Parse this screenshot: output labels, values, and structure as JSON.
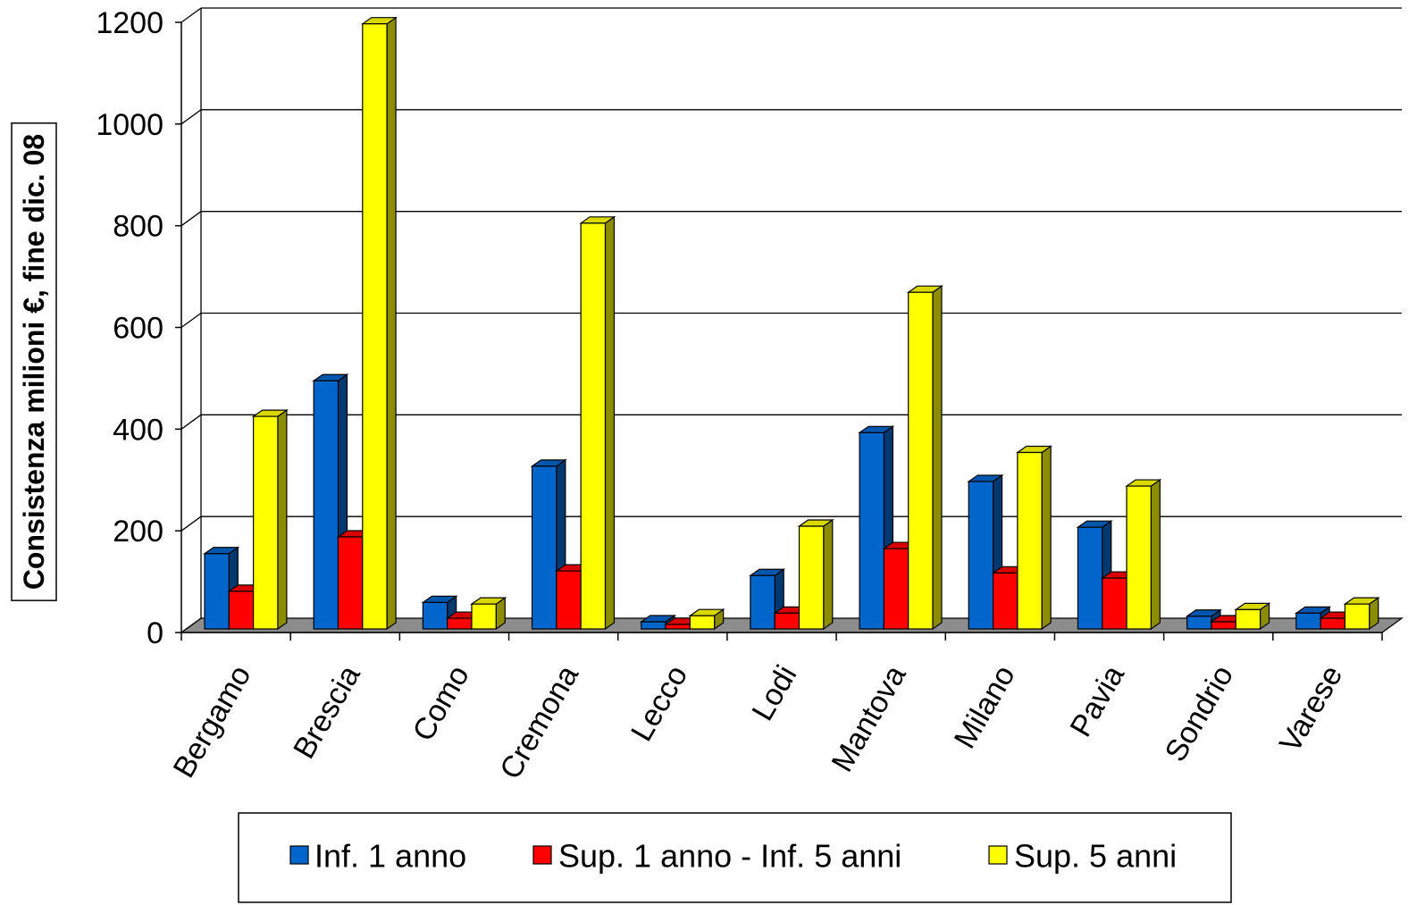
{
  "chart_data": {
    "type": "bar",
    "projection": "3d",
    "categories": [
      "Bergamo",
      "Brescia",
      "Como",
      "Cremona",
      "Lecco",
      "Lodi",
      "Mantova",
      "Milano",
      "Pavia",
      "Sondrio",
      "Varese"
    ],
    "series": [
      {
        "name": "Inf. 1 anno",
        "color": "#0066CC",
        "values": [
          148,
          488,
          52,
          320,
          14,
          105,
          386,
          290,
          200,
          25,
          31
        ]
      },
      {
        "name": "Sup. 1 anno - Inf. 5 anni",
        "color": "#FF0000",
        "values": [
          74,
          181,
          21,
          114,
          9,
          31,
          158,
          110,
          100,
          14,
          21
        ]
      },
      {
        "name": "Sup. 5 anni",
        "color": "#FFFF00",
        "values": [
          418,
          1190,
          49,
          798,
          26,
          202,
          662,
          347,
          281,
          38,
          49
        ]
      }
    ],
    "ylabel": "Consistenza milioni €, fine dic. 08",
    "ylim": [
      0,
      1200
    ],
    "yticks": [
      0,
      200,
      400,
      600,
      800,
      1000,
      1200
    ],
    "grid": true,
    "legend": "bottom"
  }
}
